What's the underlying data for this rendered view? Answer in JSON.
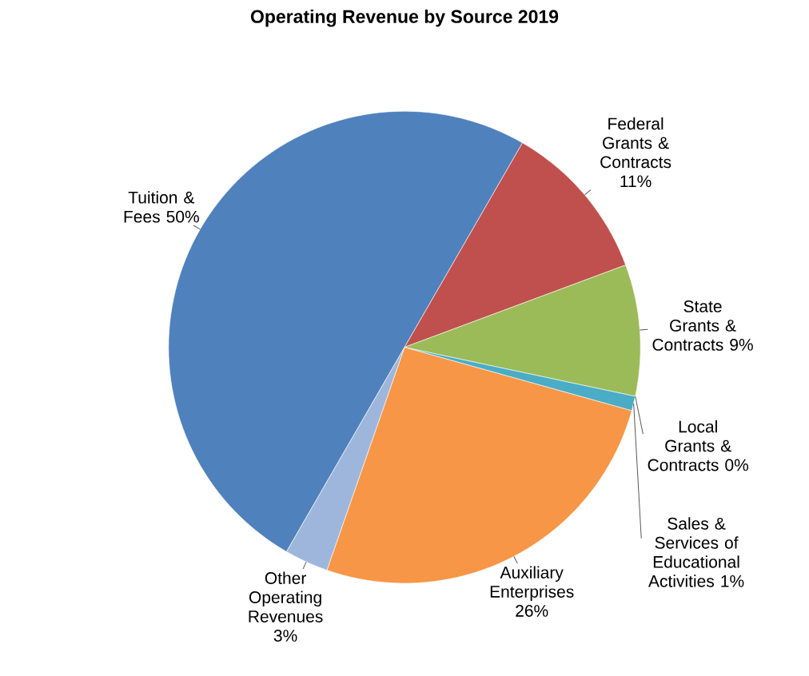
{
  "chart_data": {
    "type": "pie",
    "title": "Operating Revenue by Source 2019",
    "categories": [
      "Tuition & Fees",
      "Federal Grants & Contracts",
      "State Grants & Contracts",
      "Local Grants & Contracts",
      "Sales & Services of Educational Activities",
      "Auxiliary Enterprises",
      "Other Operating Revenues"
    ],
    "values": [
      50,
      11,
      9,
      0,
      1,
      26,
      3
    ],
    "value_labels": [
      "50%",
      "11%",
      "9%",
      "0%",
      "1%",
      "26%",
      "3%"
    ],
    "colors": [
      "#4f81bd",
      "#c0504d",
      "#9bbb59",
      "#8064a2",
      "#4bacc6",
      "#f79646",
      "#9fb6dc"
    ]
  }
}
